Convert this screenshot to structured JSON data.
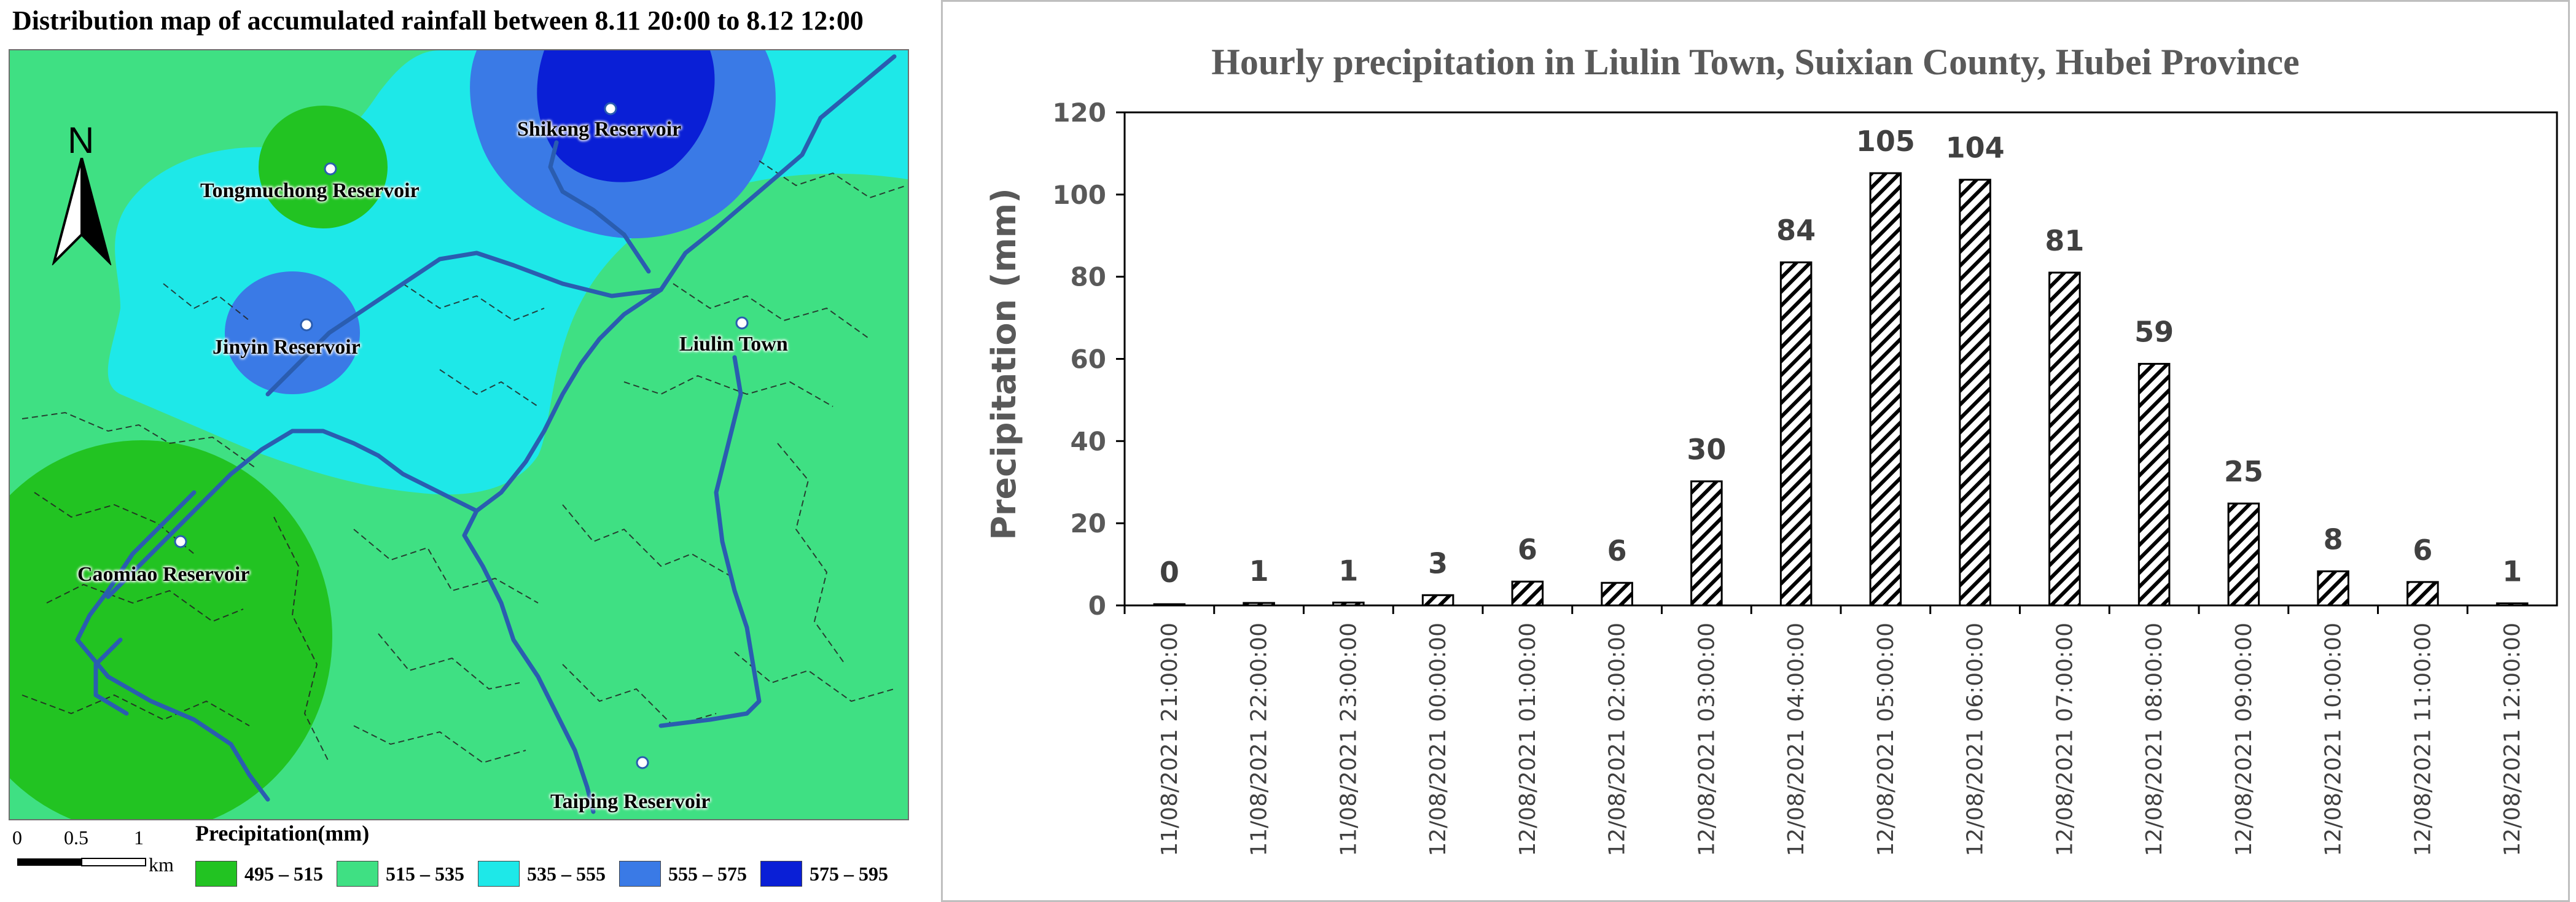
{
  "map": {
    "title": "Distribution map of accumulated rainfall between 8.11 20:00 to 8.12 12:00",
    "north_label": "N",
    "labels": {
      "shikeng": "Shikeng Reservoir",
      "tongmuchong": "Tongmuchong Reservoir",
      "jinyin": "Jinyin Reservoir",
      "liulin": "Liulin Town",
      "caomiao": "Caomiao Reservoir",
      "taiping": "Taiping Reservoir"
    },
    "scale": {
      "ticks": [
        "0",
        "0.5",
        "1"
      ],
      "unit": "km"
    },
    "legend": {
      "title": "Precipitation(mm)",
      "items": [
        {
          "label": "495 – 515",
          "color": "#22c322"
        },
        {
          "label": "515 – 535",
          "color": "#3fe083"
        },
        {
          "label": "535 – 555",
          "color": "#1ee8e8"
        },
        {
          "label": "555 – 575",
          "color": "#3a7ae6"
        },
        {
          "label": "575 – 595",
          "color": "#0a1fd6"
        }
      ]
    },
    "colors": {
      "river": "#2a5db0",
      "boundary": "#222222",
      "marker": "#2a5db0"
    }
  },
  "chart_data": {
    "type": "bar",
    "title": "Hourly precipitation in Liulin Town, Suixian County, Hubei Province",
    "xlabel": "",
    "ylabel": "Precipitation (mm)",
    "ylim": [
      0,
      120
    ],
    "yticks": [
      0,
      20,
      40,
      60,
      80,
      100,
      120
    ],
    "grid": false,
    "bar_style": "diagonal hatch, black outline",
    "categories": [
      "11/08/2021 21:00:00",
      "11/08/2021 22:00:00",
      "11/08/2021 23:00:00",
      "12/08/2021 00:00:00",
      "12/08/2021 01:00:00",
      "12/08/2021 02:00:00",
      "12/08/2021 03:00:00",
      "12/08/2021 04:00:00",
      "12/08/2021 05:00:00",
      "12/08/2021 06:00:00",
      "12/08/2021 07:00:00",
      "12/08/2021 08:00:00",
      "12/08/2021 09:00:00",
      "12/08/2021 10:00:00",
      "12/08/2021 11:00:00",
      "12/08/2021 12:00:00"
    ],
    "values": [
      0.3,
      0.6,
      0.7,
      2.5,
      5.8,
      5.5,
      30.2,
      83.5,
      105.2,
      103.6,
      81,
      58.8,
      24.8,
      8.3,
      5.7,
      0.5
    ],
    "data_labels": [
      "0",
      "1",
      "1",
      "3",
      "6",
      "6",
      "30",
      "84",
      "105",
      "104",
      "81",
      "59",
      "25",
      "8",
      "6",
      "1"
    ]
  }
}
